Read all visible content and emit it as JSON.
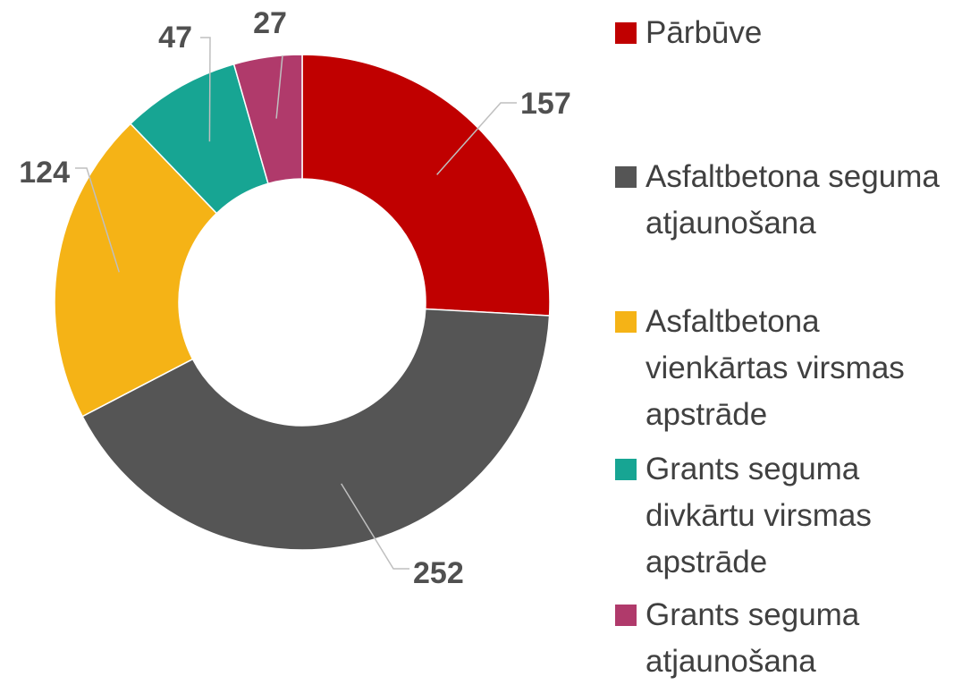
{
  "chart_data": {
    "type": "donut",
    "categories": [
      "Pārbūve",
      "Asfaltbetona seguma atjaunošana",
      "Asfaltbetona vienkārtas virsmas apstrāde",
      "Grants seguma divkārtu virsmas apstrāde",
      "Grants seguma atjaunošana"
    ],
    "values": [
      157,
      252,
      124,
      47,
      27
    ],
    "colors": [
      "#c00000",
      "#555555",
      "#f5b316",
      "#17a593",
      "#b03a6b"
    ],
    "legend": "right"
  }
}
